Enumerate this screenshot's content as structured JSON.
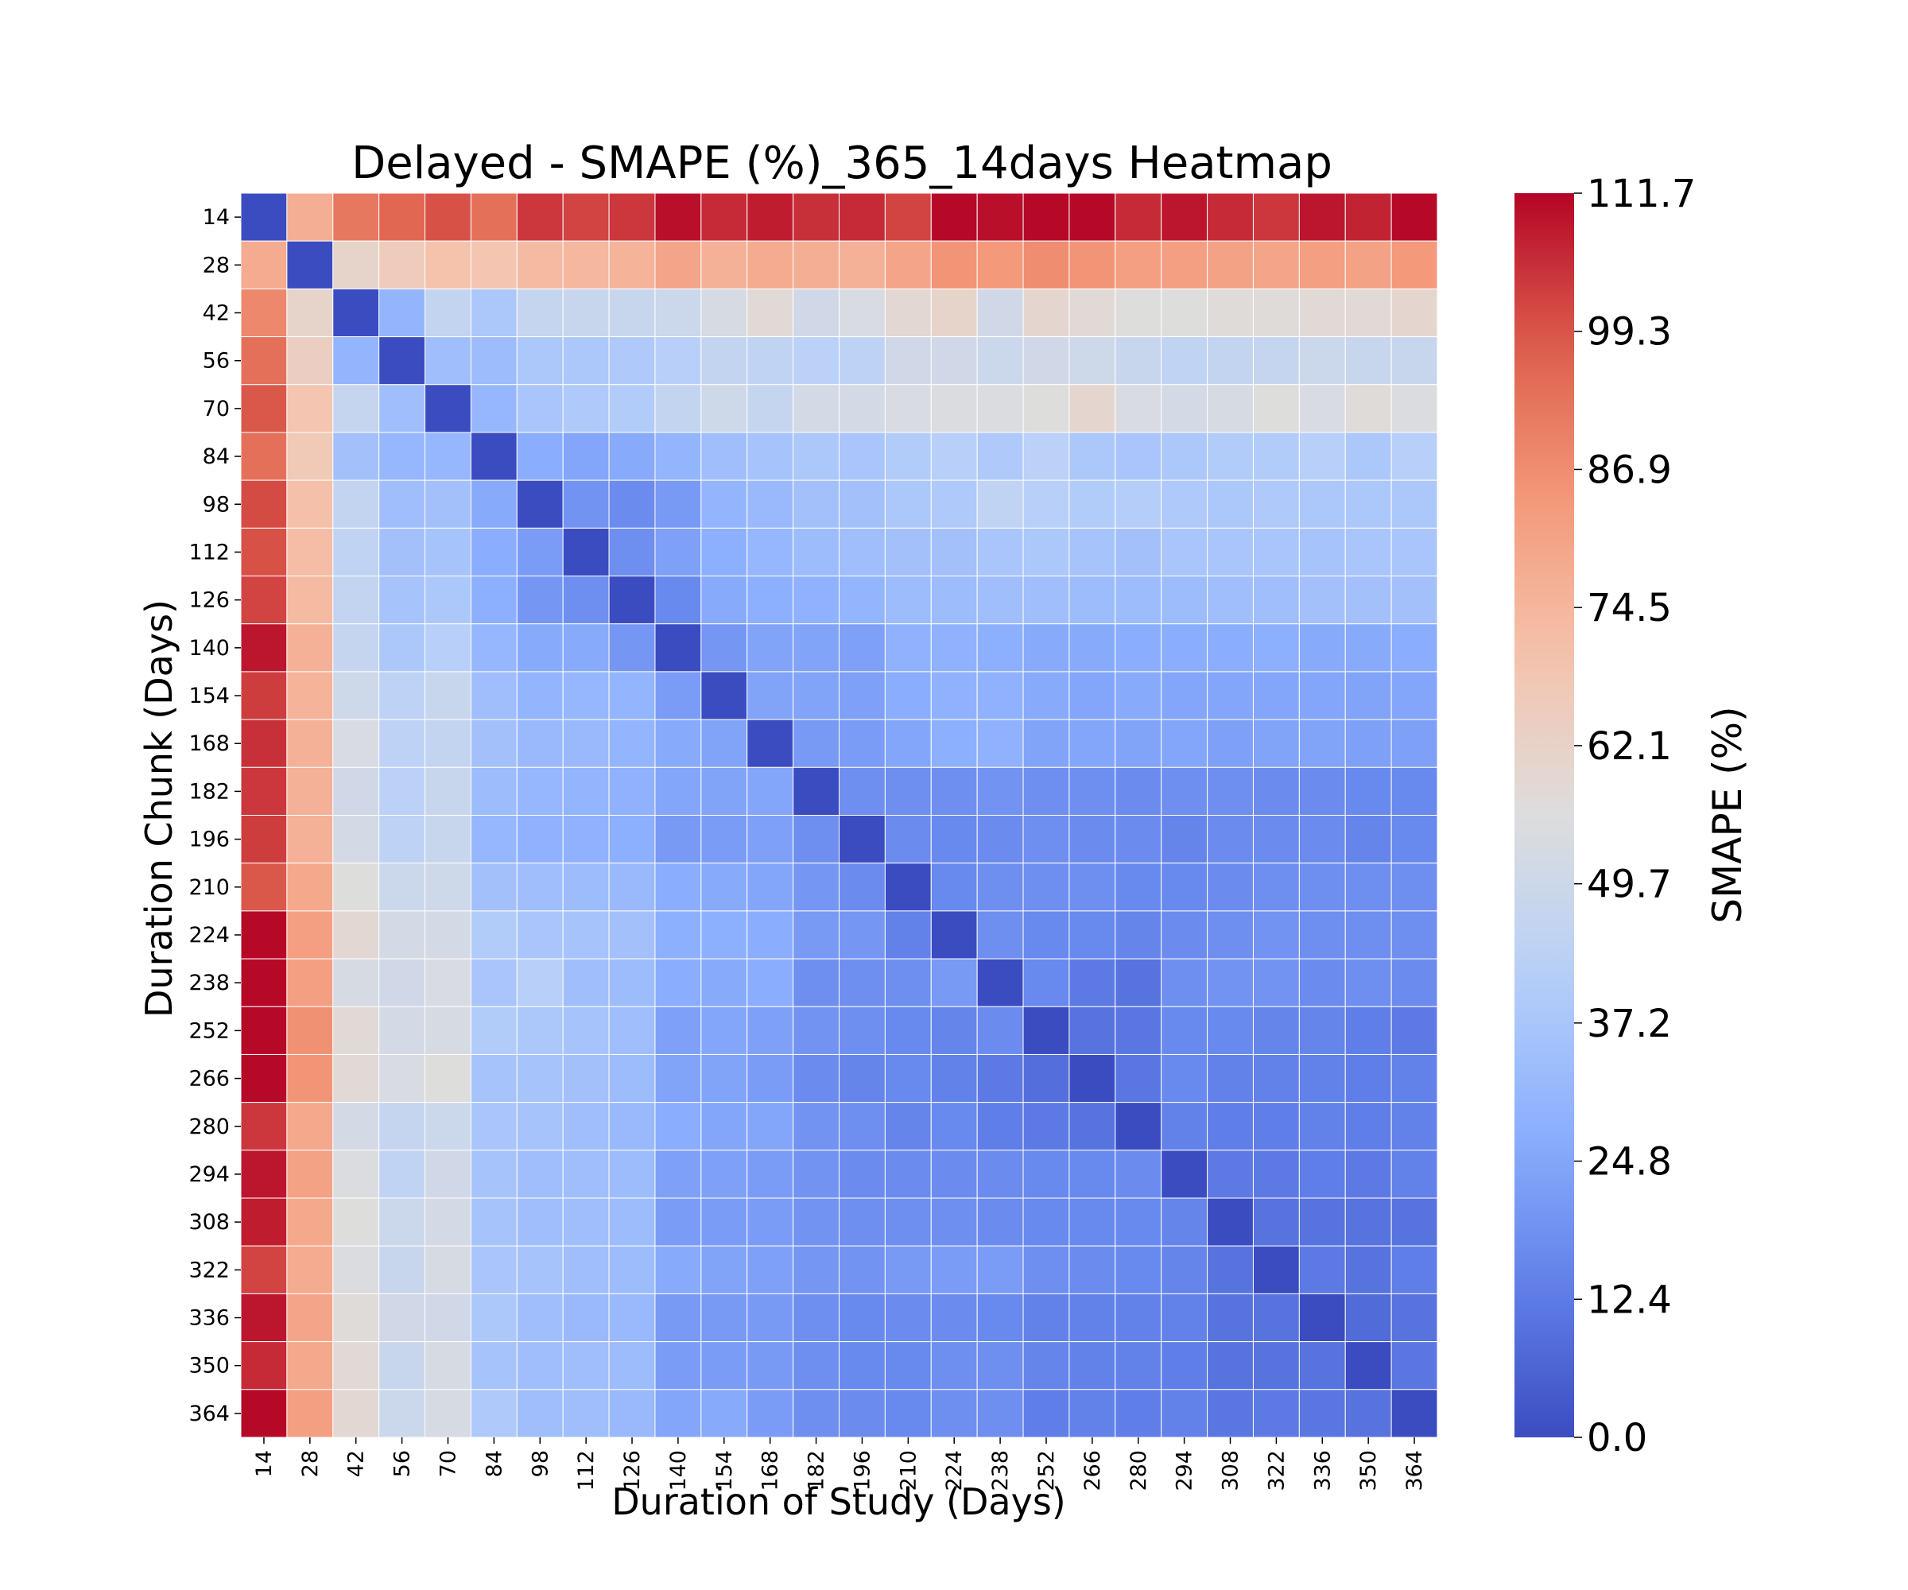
{
  "chart_data": {
    "type": "heatmap",
    "title": "Delayed - SMAPE (%)_365_14days Heatmap",
    "xlabel": "Duration of Study (Days)",
    "ylabel": "Duration Chunk (Days)",
    "x": [
      14,
      28,
      42,
      56,
      70,
      84,
      98,
      112,
      126,
      140,
      154,
      168,
      182,
      196,
      210,
      224,
      238,
      252,
      266,
      280,
      294,
      308,
      322,
      336,
      350,
      364
    ],
    "y": [
      14,
      28,
      42,
      56,
      70,
      84,
      98,
      112,
      126,
      140,
      154,
      168,
      182,
      196,
      210,
      224,
      238,
      252,
      266,
      280,
      294,
      308,
      322,
      336,
      350,
      364
    ],
    "values": [
      [
        0.0,
        77,
        92,
        96,
        100,
        94,
        104,
        102,
        104,
        110,
        106,
        108,
        105,
        106,
        102,
        111,
        110,
        111,
        111,
        106,
        109,
        106,
        104,
        109,
        107,
        111
      ],
      [
        78,
        0.0,
        61,
        66,
        70,
        69,
        73,
        74,
        75,
        80,
        76,
        78,
        77,
        76,
        80,
        85,
        84,
        87,
        85,
        82,
        82,
        81,
        80,
        82,
        81,
        84
      ],
      [
        88,
        61,
        0.0,
        30,
        46,
        38,
        47,
        48,
        48,
        49,
        53,
        58,
        51,
        54,
        59,
        61,
        51,
        60,
        58,
        56,
        56,
        57,
        57,
        58,
        58,
        60
      ],
      [
        94,
        64,
        30,
        0.0,
        34,
        33,
        38,
        38,
        39,
        42,
        46,
        45,
        43,
        44,
        51,
        51,
        49,
        51,
        50,
        48,
        45,
        46,
        47,
        49,
        48,
        48
      ],
      [
        99,
        69,
        47,
        34,
        0.0,
        31,
        37,
        39,
        40,
        46,
        50,
        47,
        52,
        52,
        54,
        55,
        55,
        56,
        60,
        54,
        52,
        53,
        56,
        54,
        57,
        55
      ],
      [
        94,
        67,
        35,
        31,
        31,
        0.0,
        27,
        25,
        26,
        30,
        34,
        36,
        38,
        37,
        40,
        42,
        39,
        43,
        38,
        37,
        38,
        40,
        40,
        42,
        38,
        42
      ],
      [
        101,
        71,
        46,
        34,
        35,
        26,
        0.0,
        19,
        17,
        21,
        30,
        32,
        35,
        35,
        38,
        39,
        45,
        42,
        40,
        41,
        39,
        38,
        39,
        38,
        38,
        38
      ],
      [
        100,
        72,
        45,
        35,
        36,
        27,
        22,
        0.0,
        18,
        23,
        28,
        31,
        33,
        34,
        35,
        35,
        37,
        38,
        36,
        35,
        37,
        37,
        37,
        36,
        37,
        37
      ],
      [
        102,
        73,
        46,
        36,
        38,
        28,
        20,
        18,
        0.0,
        16,
        26,
        28,
        29,
        30,
        33,
        33,
        34,
        34,
        33,
        33,
        33,
        34,
        34,
        35,
        35,
        35
      ],
      [
        109,
        76,
        47,
        38,
        42,
        31,
        26,
        26,
        20,
        0.0,
        20,
        24,
        24,
        23,
        29,
        29,
        28,
        26,
        26,
        27,
        27,
        27,
        28,
        26,
        26,
        27
      ],
      [
        103,
        75,
        50,
        44,
        48,
        34,
        30,
        31,
        30,
        22,
        0.0,
        24,
        24,
        23,
        27,
        29,
        29,
        26,
        25,
        26,
        25,
        25,
        25,
        25,
        24,
        25
      ],
      [
        105,
        76,
        54,
        44,
        46,
        35,
        32,
        32,
        30,
        26,
        24,
        0.0,
        21,
        22,
        25,
        28,
        29,
        24,
        25,
        24,
        25,
        23,
        24,
        24,
        23,
        23
      ],
      [
        104,
        76,
        51,
        43,
        48,
        33,
        31,
        30,
        29,
        25,
        24,
        25,
        0.0,
        18,
        18,
        18,
        19,
        18,
        18,
        17,
        18,
        18,
        17,
        17,
        16,
        16
      ],
      [
        103,
        76,
        52,
        44,
        48,
        31,
        29,
        29,
        28,
        21,
        22,
        23,
        18,
        0.0,
        17,
        16,
        17,
        18,
        17,
        17,
        15,
        17,
        17,
        17,
        15,
        16
      ],
      [
        99,
        79,
        56,
        49,
        50,
        35,
        34,
        33,
        32,
        27,
        26,
        25,
        20,
        17,
        0.0,
        16,
        18,
        18,
        18,
        16,
        16,
        17,
        18,
        18,
        18,
        18
      ],
      [
        111,
        82,
        59,
        52,
        52,
        40,
        37,
        36,
        35,
        28,
        28,
        27,
        21,
        20,
        14,
        0.0,
        18,
        16,
        16,
        15,
        17,
        18,
        19,
        18,
        18,
        18
      ],
      [
        111,
        82,
        53,
        51,
        54,
        37,
        42,
        34,
        33,
        27,
        26,
        27,
        18,
        18,
        18,
        21,
        0.0,
        16,
        12,
        10,
        18,
        19,
        19,
        17,
        18,
        17
      ],
      [
        111,
        86,
        58,
        52,
        53,
        40,
        38,
        36,
        34,
        23,
        25,
        23,
        19,
        18,
        16,
        15,
        17,
        0.0,
        10,
        11,
        16,
        16,
        15,
        15,
        13,
        12
      ],
      [
        111,
        85,
        58,
        54,
        56,
        36,
        36,
        35,
        33,
        24,
        24,
        22,
        17,
        15,
        16,
        14,
        12,
        9,
        0.0,
        11,
        16,
        14,
        14,
        14,
        13,
        14
      ],
      [
        104,
        79,
        52,
        47,
        49,
        37,
        36,
        34,
        32,
        27,
        25,
        25,
        19,
        18,
        15,
        16,
        13,
        12,
        10,
        0.0,
        14,
        13,
        13,
        14,
        13,
        14
      ],
      [
        109,
        81,
        55,
        45,
        51,
        36,
        34,
        34,
        33,
        23,
        23,
        22,
        19,
        17,
        17,
        17,
        17,
        16,
        16,
        17,
        0.0,
        12,
        12,
        13,
        12,
        14
      ],
      [
        108,
        79,
        56,
        49,
        52,
        36,
        34,
        34,
        33,
        22,
        22,
        22,
        19,
        18,
        18,
        18,
        17,
        16,
        16,
        16,
        15,
        0.0,
        10,
        10,
        10,
        10
      ],
      [
        102,
        78,
        55,
        48,
        53,
        37,
        36,
        34,
        33,
        26,
        24,
        23,
        20,
        19,
        21,
        22,
        22,
        18,
        17,
        16,
        15,
        10,
        0.0,
        12,
        10,
        13
      ],
      [
        109,
        80,
        57,
        51,
        51,
        38,
        34,
        32,
        32,
        21,
        21,
        21,
        18,
        16,
        17,
        17,
        16,
        14,
        14,
        14,
        14,
        10,
        10,
        0.0,
        8,
        10
      ],
      [
        106,
        79,
        58,
        48,
        53,
        36,
        34,
        34,
        33,
        22,
        22,
        21,
        18,
        16,
        16,
        18,
        18,
        15,
        14,
        14,
        13,
        10,
        10,
        10,
        0.0,
        11
      ],
      [
        111,
        82,
        59,
        49,
        53,
        39,
        34,
        34,
        32,
        25,
        26,
        22,
        18,
        17,
        16,
        18,
        18,
        13,
        14,
        13,
        14,
        11,
        12,
        11,
        10,
        0.0
      ]
    ],
    "colormap": "coolwarm",
    "vmin": 0.0,
    "vmax": 111.7,
    "colorbar_label": "SMAPE (%)",
    "colorbar_ticks": [
      "0.0",
      "12.4",
      "24.8",
      "37.2",
      "49.7",
      "62.1",
      "74.5",
      "86.9",
      "99.3",
      "111.7"
    ],
    "grid": true,
    "legend": "colorbar-right"
  }
}
